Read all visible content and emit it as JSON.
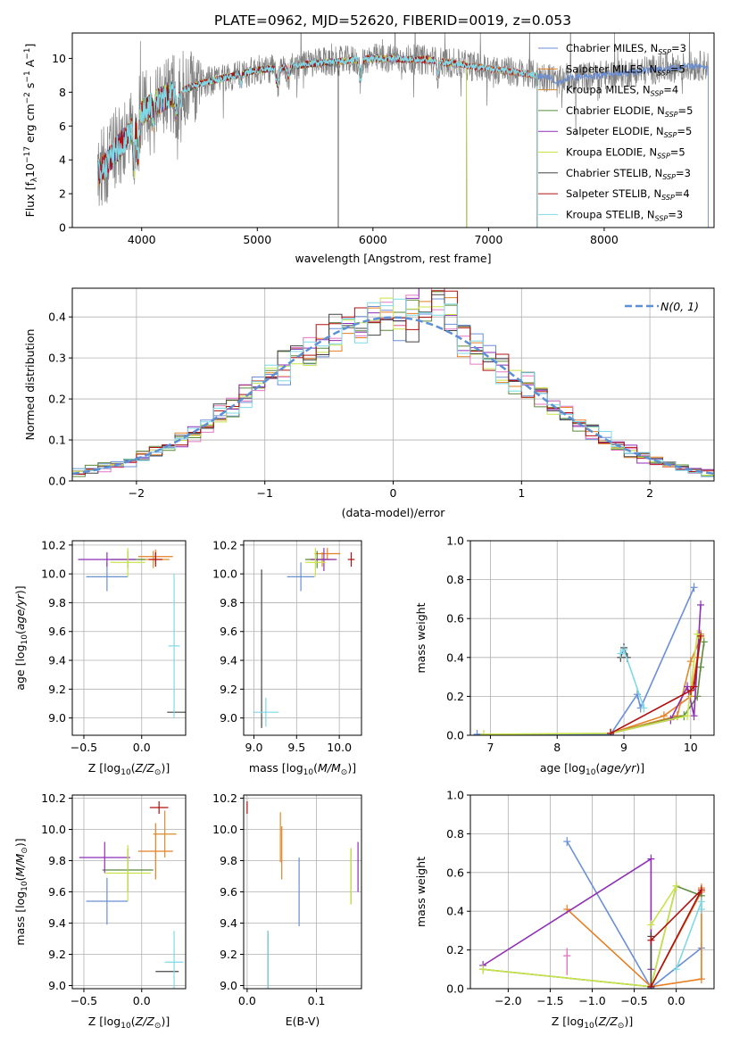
{
  "figure": {
    "title": "PLATE=0962, MJD=52620, FIBERID=0019, z=0.053"
  },
  "colors": {
    "Chabrier MILES": "#6a8fd6",
    "Salpeter MILES": "#e67e22",
    "Kroupa MILES": "#d98b2b",
    "Chabrier ELODIE": "#5a8a3a",
    "Salpeter ELODIE": "#8e2fb5",
    "Kroupa ELODIE": "#c8e34a",
    "Chabrier STELIB": "#444444",
    "Salpeter STELIB": "#b01010",
    "Kroupa STELIB": "#7fd8e6",
    "gaussian": "#5b8fd6",
    "data": "#808080"
  },
  "chart_data": [
    {
      "id": "spectrum",
      "type": "line",
      "title": "PLATE=0962, MJD=52620, FIBERID=0019, z=0.053",
      "xlabel": "wavelength [Angstrom, rest frame]",
      "ylabel": "Flux [f_λ 10^-17 erg cm^-2 s^-1 A^-1]",
      "xlim": [
        3400,
        8950
      ],
      "ylim": [
        0,
        11.5
      ],
      "xticks": [
        4000,
        5000,
        6000,
        7000,
        8000
      ],
      "yticks": [
        0,
        2,
        4,
        6,
        8,
        10
      ],
      "grid": false,
      "legend_position": "right",
      "legend": [
        "Chabrier MILES, N_SSP=3",
        "Salpeter MILES, N_SSP=5",
        "Kroupa MILES, N_SSP=4",
        "Chabrier ELODIE, N_SSP=5",
        "Salpeter ELODIE, N_SSP=5",
        "Kroupa ELODIE, N_SSP=5",
        "Chabrier STELIB, N_SSP=3",
        "Salpeter STELIB, N_SSP=4",
        "Kroupa STELIB, N_SSP=3"
      ],
      "continuum": {
        "x": [
          3620,
          3700,
          3800,
          3900,
          4000,
          4200,
          4500,
          5000,
          5500,
          6000,
          6500,
          7000,
          7400,
          7600,
          8000,
          8500,
          8900
        ],
        "y": [
          3.2,
          3.8,
          4.8,
          5.6,
          6.8,
          7.7,
          8.5,
          9.3,
          9.7,
          10.0,
          9.9,
          9.4,
          9.0,
          8.8,
          9.0,
          9.4,
          9.6
        ]
      },
      "data_range": [
        3620,
        8900
      ],
      "model_ranges": {
        "Chabrier MILES": [
          3620,
          8900
        ],
        "Salpeter MILES": [
          3620,
          7420
        ],
        "Kroupa MILES": [
          3620,
          7420
        ],
        "Chabrier ELODIE": [
          3620,
          6810
        ],
        "Salpeter ELODIE": [
          3620,
          6810
        ],
        "Kroupa ELODIE": [
          3900,
          6810
        ],
        "Chabrier STELIB": [
          3620,
          5700
        ],
        "Salpeter STELIB": [
          3620,
          7420
        ],
        "Kroupa STELIB": [
          3620,
          7420
        ]
      }
    },
    {
      "id": "residual-hist",
      "type": "line",
      "xlabel": "(data-model)/error",
      "ylabel": "Normed distribution",
      "xlim": [
        -2.5,
        2.5
      ],
      "ylim": [
        0,
        0.47
      ],
      "xticks": [
        -2,
        -1,
        0,
        1,
        2
      ],
      "yticks": [
        0.0,
        0.1,
        0.2,
        0.3,
        0.4
      ],
      "grid": true,
      "legend_position": "top-right",
      "legend": [
        "N(0,1)"
      ],
      "bins": 50
    },
    {
      "id": "age-vs-Z",
      "type": "scatter",
      "xlabel": "Z [log10(Z/Z_sun)]",
      "ylabel": "age [log10(age/yr)]",
      "xlim": [
        -0.6,
        0.38
      ],
      "ylim": [
        8.88,
        10.23
      ],
      "xticks": [
        -0.5,
        0.0
      ],
      "yticks": [
        9.0,
        9.2,
        9.4,
        9.6,
        9.8,
        10.0,
        10.2
      ],
      "grid": true,
      "points": [
        {
          "model": "Chabrier MILES",
          "x": -0.3,
          "y": 9.98,
          "xerr": 0.18,
          "yerr": 0.1
        },
        {
          "model": "Salpeter MILES",
          "x": 0.12,
          "y": 10.12,
          "xerr": 0.15,
          "yerr": 0.05
        },
        {
          "model": "Kroupa MILES",
          "x": 0.1,
          "y": 10.1,
          "xerr": 0.14,
          "yerr": 0.06
        },
        {
          "model": "Chabrier ELODIE",
          "x": -0.12,
          "y": 10.1,
          "xerr": 0.15,
          "yerr": 0.06
        },
        {
          "model": "Salpeter ELODIE",
          "x": -0.3,
          "y": 10.1,
          "xerr": 0.25,
          "yerr": 0.05
        },
        {
          "model": "Kroupa ELODIE",
          "x": -0.12,
          "y": 10.08,
          "xerr": 0.15,
          "yerr": 0.1
        },
        {
          "model": "Chabrier STELIB",
          "x": 0.3,
          "y": 9.04,
          "xerr": 0.08,
          "yerr": 0.0
        },
        {
          "model": "Salpeter STELIB",
          "x": 0.12,
          "y": 10.1,
          "xerr": 0.06,
          "yerr": 0.05
        },
        {
          "model": "Kroupa STELIB",
          "x": 0.28,
          "y": 9.5,
          "xerr": 0.05,
          "yerr": 0.5
        }
      ]
    },
    {
      "id": "age-vs-mass",
      "type": "scatter",
      "xlabel": "mass [log10(M/M_sun)]",
      "ylabel": "",
      "xlim": [
        8.88,
        10.26
      ],
      "ylim": [
        8.88,
        10.23
      ],
      "xticks": [
        9.0,
        9.5,
        10.0
      ],
      "yticks": [
        9.0,
        9.2,
        9.4,
        9.6,
        9.8,
        10.0,
        10.2
      ],
      "grid": true,
      "points": [
        {
          "model": "Chabrier MILES",
          "x": 9.55,
          "y": 9.98,
          "xerr": 0.16,
          "yerr": 0.1
        },
        {
          "model": "Salpeter MILES",
          "x": 9.86,
          "y": 10.14,
          "xerr": 0.15,
          "yerr": 0.04
        },
        {
          "model": "Kroupa MILES",
          "x": 9.8,
          "y": 10.1,
          "xerr": 0.15,
          "yerr": 0.05
        },
        {
          "model": "Chabrier ELODIE",
          "x": 9.74,
          "y": 10.1,
          "xerr": 0.14,
          "yerr": 0.06
        },
        {
          "model": "Salpeter ELODIE",
          "x": 9.82,
          "y": 10.1,
          "xerr": 0.15,
          "yerr": 0.08
        },
        {
          "model": "Kroupa ELODIE",
          "x": 9.72,
          "y": 10.08,
          "xerr": 0.12,
          "yerr": 0.1
        },
        {
          "model": "Chabrier STELIB",
          "x": 9.09,
          "y": 9.48,
          "xerr": 0.0,
          "yerr": 0.55
        },
        {
          "model": "Salpeter STELIB",
          "x": 10.14,
          "y": 10.1,
          "xerr": 0.04,
          "yerr": 0.05
        },
        {
          "model": "Kroupa STELIB",
          "x": 9.14,
          "y": 9.04,
          "xerr": 0.15,
          "yerr": 0.1
        }
      ]
    },
    {
      "id": "weight-vs-age",
      "type": "line",
      "xlabel": "age [log10(age/yr)]",
      "ylabel": "mass weight",
      "xlim": [
        6.7,
        10.35
      ],
      "ylim": [
        0,
        1.0
      ],
      "xticks": [
        7,
        8,
        9,
        10
      ],
      "yticks": [
        0.0,
        0.2,
        0.4,
        0.6,
        0.8,
        1.0
      ],
      "grid": true,
      "series": [
        {
          "model": "Chabrier MILES",
          "x": [
            6.8,
            8.8,
            9.2,
            9.25,
            10.05
          ],
          "y": [
            0.005,
            0.005,
            0.21,
            0.14,
            0.76
          ]
        },
        {
          "model": "Salpeter MILES",
          "x": [
            8.8,
            9.6,
            10.0,
            10.1,
            10.15
          ],
          "y": [
            0.01,
            0.1,
            0.2,
            0.4,
            0.52
          ]
        },
        {
          "model": "Kroupa MILES",
          "x": [
            8.8,
            9.8,
            10.0,
            10.15
          ],
          "y": [
            0.01,
            0.1,
            0.38,
            0.5
          ]
        },
        {
          "model": "Chabrier ELODIE",
          "x": [
            8.8,
            9.9,
            10.1,
            10.15,
            10.2
          ],
          "y": [
            0.01,
            0.1,
            0.2,
            0.35,
            0.48
          ]
        },
        {
          "model": "Salpeter ELODIE",
          "x": [
            8.8,
            9.7,
            9.95,
            10.05,
            10.15
          ],
          "y": [
            0.01,
            0.08,
            0.25,
            0.1,
            0.67
          ]
        },
        {
          "model": "Kroupa ELODIE",
          "x": [
            6.9,
            8.8,
            9.95,
            10.1,
            10.15
          ],
          "y": [
            0.005,
            0.01,
            0.1,
            0.52,
            0.5
          ]
        },
        {
          "model": "Chabrier STELIB",
          "x": [
            8.95,
            9.0,
            9.05
          ],
          "y": [
            0.4,
            0.45,
            0.4
          ]
        },
        {
          "model": "Salpeter STELIB",
          "x": [
            8.8,
            10.0,
            10.05,
            10.15
          ],
          "y": [
            0.01,
            0.23,
            0.25,
            0.51
          ]
        },
        {
          "model": "Kroupa STELIB",
          "x": [
            8.95,
            9.0,
            9.3
          ],
          "y": [
            0.42,
            0.44,
            0.14
          ]
        }
      ]
    },
    {
      "id": "mass-vs-Z",
      "type": "scatter",
      "xlabel": "Z [log10(Z/Z_sun)]",
      "ylabel": "mass [log10(M/M_sun)]",
      "xlim": [
        -0.6,
        0.38
      ],
      "ylim": [
        8.98,
        10.22
      ],
      "xticks": [
        -0.5,
        0.0
      ],
      "yticks": [
        9.0,
        9.2,
        9.4,
        9.6,
        9.8,
        10.0,
        10.2
      ],
      "grid": true,
      "points": [
        {
          "model": "Chabrier MILES",
          "x": -0.3,
          "y": 9.54,
          "xerr": 0.18,
          "yerr": 0.15
        },
        {
          "model": "Salpeter MILES",
          "x": 0.12,
          "y": 9.86,
          "xerr": 0.15,
          "yerr": 0.18
        },
        {
          "model": "Kroupa MILES",
          "x": 0.2,
          "y": 9.97,
          "xerr": 0.1,
          "yerr": 0.15
        },
        {
          "model": "Chabrier ELODIE",
          "x": -0.12,
          "y": 9.74,
          "xerr": 0.22,
          "yerr": 0.14
        },
        {
          "model": "Salpeter ELODIE",
          "x": -0.32,
          "y": 9.82,
          "xerr": 0.22,
          "yerr": 0.1
        },
        {
          "model": "Kroupa ELODIE",
          "x": -0.12,
          "y": 9.72,
          "xerr": 0.2,
          "yerr": 0.18
        },
        {
          "model": "Chabrier STELIB",
          "x": 0.22,
          "y": 9.09,
          "xerr": 0.1,
          "yerr": 0.0
        },
        {
          "model": "Salpeter STELIB",
          "x": 0.15,
          "y": 10.14,
          "xerr": 0.08,
          "yerr": 0.04
        },
        {
          "model": "Kroupa STELIB",
          "x": 0.28,
          "y": 9.15,
          "xerr": 0.08,
          "yerr": 0.2
        }
      ]
    },
    {
      "id": "mass-vs-ebv",
      "type": "scatter",
      "xlabel": "E(B-V)",
      "ylabel": "",
      "xlim": [
        -0.005,
        0.165
      ],
      "ylim": [
        8.98,
        10.22
      ],
      "xticks": [
        0.0,
        0.1
      ],
      "yticks": [
        9.0,
        9.2,
        9.4,
        9.6,
        9.8,
        10.0,
        10.2
      ],
      "grid": true,
      "points": [
        {
          "model": "Chabrier MILES",
          "x": 0.075,
          "y": 9.6,
          "xerr": 0,
          "yerr": 0.22
        },
        {
          "model": "Salpeter MILES",
          "x": 0.05,
          "y": 9.85,
          "xerr": 0,
          "yerr": 0.17
        },
        {
          "model": "Kroupa MILES",
          "x": 0.048,
          "y": 9.95,
          "xerr": 0,
          "yerr": 0.16
        },
        {
          "model": "Chabrier ELODIE",
          "x": 0.15,
          "y": 9.7,
          "xerr": 0,
          "yerr": 0.18
        },
        {
          "model": "Salpeter ELODIE",
          "x": 0.16,
          "y": 9.76,
          "xerr": 0,
          "yerr": 0.16
        },
        {
          "model": "Kroupa ELODIE",
          "x": 0.15,
          "y": 9.7,
          "xerr": 0,
          "yerr": 0.18
        },
        {
          "model": "Chabrier STELIB",
          "x": 0.03,
          "y": 9.15,
          "xerr": 0,
          "yerr": 0.2
        },
        {
          "model": "Salpeter STELIB",
          "x": 0.0,
          "y": 10.14,
          "xerr": 0,
          "yerr": 0.04
        },
        {
          "model": "Kroupa STELIB",
          "x": 0.03,
          "y": 9.15,
          "xerr": 0,
          "yerr": 0.2
        }
      ]
    },
    {
      "id": "weight-vs-Z",
      "type": "line",
      "xlabel": "Z [log10(Z/Z_sun)]",
      "ylabel": "mass weight",
      "xlim": [
        -2.45,
        0.45
      ],
      "ylim": [
        0,
        1.0
      ],
      "xticks": [
        -2.0,
        -1.5,
        -1.0,
        -0.5,
        0.0
      ],
      "yticks": [
        0.0,
        0.2,
        0.4,
        0.6,
        0.8,
        1.0
      ],
      "grid": true,
      "series": [
        {
          "model": "Chabrier MILES",
          "x": [
            -1.3,
            -0.3,
            0.3
          ],
          "y": [
            0.76,
            0.005,
            0.21
          ]
        },
        {
          "model": "Salpeter MILES",
          "x": [
            -1.3,
            -0.3,
            0.3,
            0.3
          ],
          "y": [
            0.41,
            0.01,
            0.05,
            0.52
          ]
        },
        {
          "model": "Kroupa MILES",
          "x": [
            -0.3,
            0.3
          ],
          "y": [
            0.01,
            0.5
          ]
        },
        {
          "model": "Chabrier ELODIE",
          "x": [
            -2.3,
            -0.3,
            -0.0,
            0.3
          ],
          "y": [
            0.1,
            0.01,
            0.53,
            0.48
          ]
        },
        {
          "model": "Salpeter ELODIE",
          "x": [
            -2.3,
            -0.3,
            -0.3
          ],
          "y": [
            0.12,
            0.67,
            0.1
          ]
        },
        {
          "model": "Kroupa ELODIE",
          "x": [
            -2.3,
            -0.3,
            -0.0,
            -0.3
          ],
          "y": [
            0.1,
            0.01,
            0.53,
            0.33
          ]
        },
        {
          "model": "Chabrier STELIB",
          "x": [
            -0.3,
            -0.3
          ],
          "y": [
            0.01,
            0.27
          ]
        },
        {
          "model": "Salpeter STELIB",
          "x": [
            -0.3,
            0.3,
            -0.3
          ],
          "y": [
            0.01,
            0.51,
            0.25
          ]
        },
        {
          "model": "Kroupa STELIB",
          "x": [
            0.0,
            0.3,
            0.3
          ],
          "y": [
            0.1,
            0.45,
            0.41
          ]
        }
      ],
      "markers": [
        {
          "model": "Kroupa MILES",
          "x": -1.3,
          "y": 0.17,
          "yerr": 0.04
        }
      ]
    }
  ],
  "labels": {
    "spectrum_legend": [
      "Chabrier MILES, N",
      "Salpeter MILES, N",
      "Kroupa MILES, N",
      "Chabrier ELODIE, N",
      "Salpeter ELODIE, N",
      "Kroupa ELODIE, N",
      "Chabrier STELIB, N",
      "Salpeter STELIB, N",
      "Kroupa STELIB, N"
    ],
    "spectrum_legend_n": [
      "3",
      "5",
      "4",
      "5",
      "5",
      "5",
      "3",
      "4",
      "3"
    ],
    "ssp_sub": "SSP",
    "hist_legend": "N(0, 1)"
  }
}
